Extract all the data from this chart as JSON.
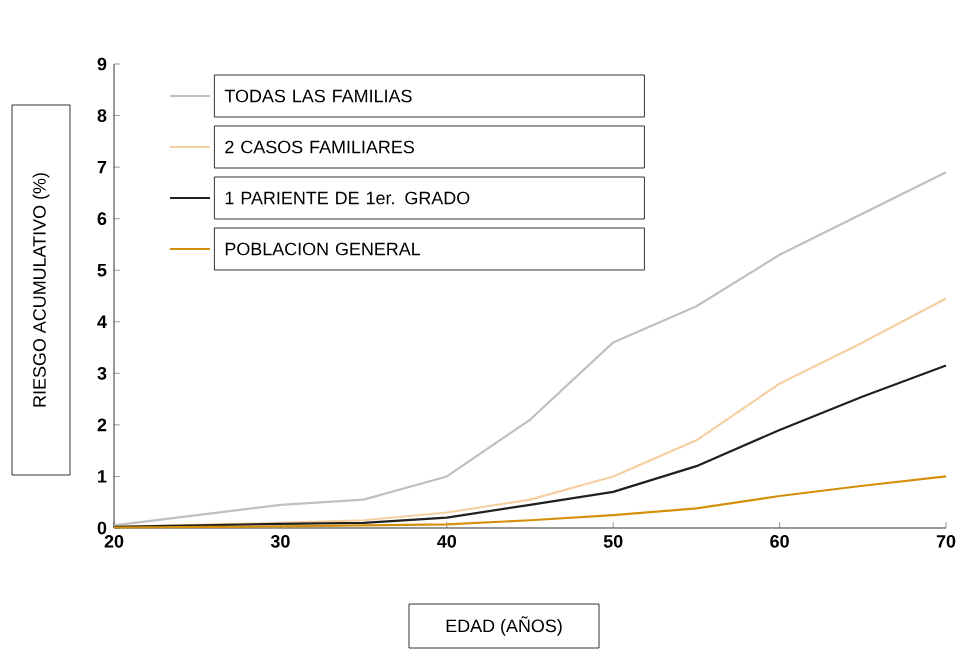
{
  "chart_data": {
    "type": "line",
    "xlabel": "EDAD (AÑOS)",
    "ylabel": "RIESGO ACUMULATIVO (%)",
    "x": [
      20,
      25,
      30,
      35,
      40,
      45,
      50,
      55,
      60,
      65,
      70
    ],
    "series": [
      {
        "name": "TODAS LAS FAMILIAS",
        "color": "#c0c0c0",
        "values": [
          0.05,
          0.25,
          0.45,
          0.55,
          1.0,
          2.1,
          3.6,
          4.3,
          5.3,
          6.1,
          6.9
        ]
      },
      {
        "name": "2 CASOS FAMILIARES",
        "color": "#f5cfa0",
        "values": [
          0.02,
          null,
          0.1,
          0.15,
          0.3,
          0.55,
          1.0,
          1.7,
          2.8,
          3.6,
          4.45
        ]
      },
      {
        "name": "1 PARIENTE DE 1er. GRADO",
        "color": "#202020",
        "values": [
          0.02,
          0.05,
          0.08,
          0.1,
          0.2,
          0.45,
          0.7,
          1.2,
          1.9,
          2.55,
          3.15
        ]
      },
      {
        "name": "POBLACION GENERAL",
        "color": "#d4900c",
        "values": [
          0.01,
          0.02,
          0.03,
          0.05,
          0.07,
          0.15,
          0.25,
          0.38,
          0.62,
          0.82,
          1.0
        ]
      }
    ],
    "xlim": [
      20,
      70
    ],
    "ylim": [
      0,
      9
    ],
    "xticks": [
      20,
      30,
      40,
      50,
      60,
      70
    ],
    "yticks": [
      0,
      1,
      2,
      3,
      4,
      5,
      6,
      7,
      8,
      9
    ],
    "grid": false,
    "legend": "top left",
    "marker": "none",
    "line_style": "solid"
  }
}
